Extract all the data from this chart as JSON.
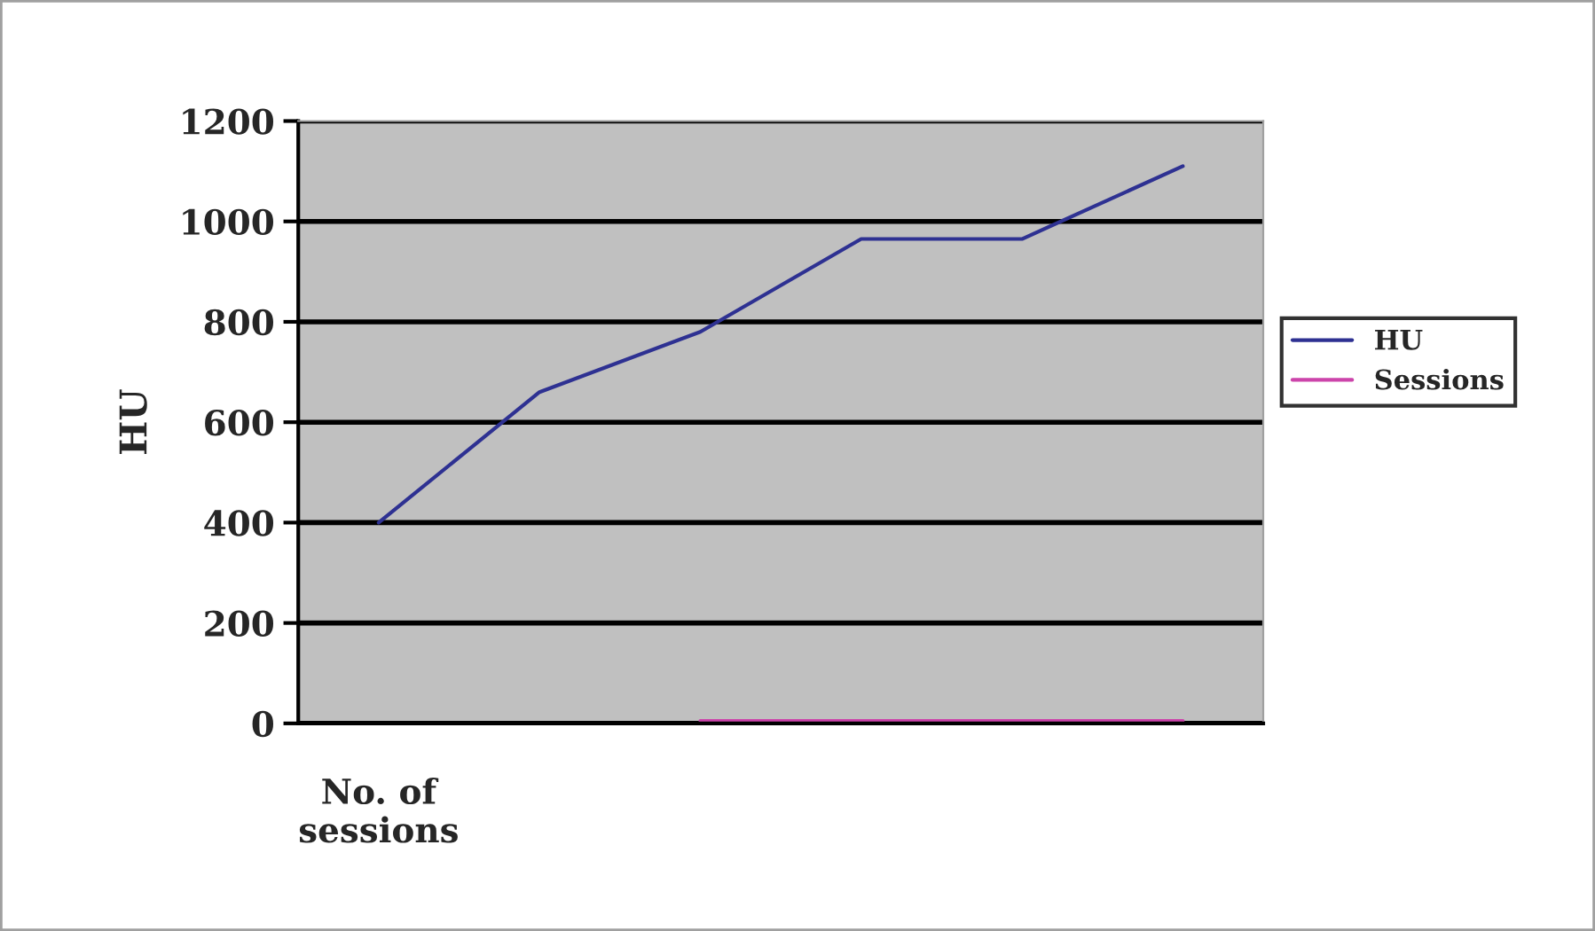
{
  "chart_data": {
    "type": "line",
    "ylabel": "HU",
    "categories": [
      "No. of\nsessions",
      null,
      null,
      null,
      null,
      null
    ],
    "series": [
      {
        "name": "HU",
        "color": "#2e3192",
        "values": [
          400,
          660,
          780,
          965,
          965,
          1110
        ]
      },
      {
        "name": "Sessions",
        "color": "#cc44aa",
        "values": [
          null,
          null,
          5,
          5,
          5,
          5
        ]
      }
    ],
    "ylim": [
      0,
      1200
    ],
    "yticks": [
      0,
      200,
      400,
      600,
      800,
      1000,
      1200
    ],
    "grid": "y",
    "legend": "right",
    "marker": "none"
  }
}
